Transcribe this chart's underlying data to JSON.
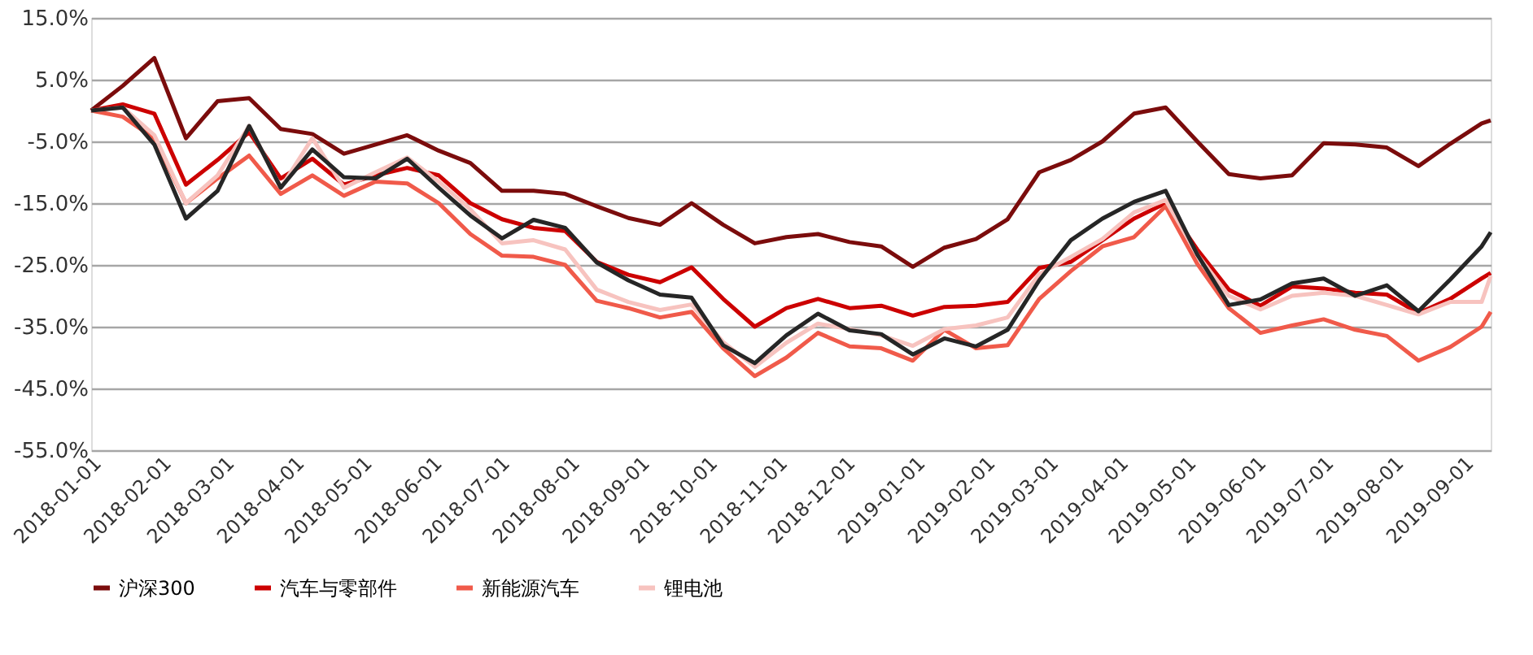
{
  "chart_data": {
    "type": "line",
    "x": [
      "2018-01-01",
      "2018-01-15",
      "2018-01-29",
      "2018-02-12",
      "2018-02-26",
      "2018-03-12",
      "2018-03-26",
      "2018-04-09",
      "2018-04-23",
      "2018-05-07",
      "2018-05-21",
      "2018-06-04",
      "2018-06-18",
      "2018-07-02",
      "2018-07-16",
      "2018-07-30",
      "2018-08-13",
      "2018-08-27",
      "2018-09-10",
      "2018-09-24",
      "2018-10-08",
      "2018-10-22",
      "2018-11-05",
      "2018-11-19",
      "2018-12-03",
      "2018-12-17",
      "2018-12-31",
      "2019-01-14",
      "2019-01-28",
      "2019-02-11",
      "2019-02-25",
      "2019-03-11",
      "2019-03-25",
      "2019-04-08",
      "2019-04-22",
      "2019-05-06",
      "2019-05-20",
      "2019-06-03",
      "2019-06-17",
      "2019-07-01",
      "2019-07-15",
      "2019-07-29",
      "2019-08-12",
      "2019-08-26",
      "2019-09-09",
      "2019-09-13"
    ],
    "series": [
      {
        "name": "沪深300",
        "color": "#7b0c0c",
        "values": [
          0,
          4,
          8.5,
          -4.5,
          1.5,
          2,
          -3,
          -3.8,
          -7,
          -5.5,
          -4,
          -6.5,
          -8.5,
          -13,
          -13,
          -13.5,
          -15.5,
          -17.4,
          -18.5,
          -15,
          -18.5,
          -21.5,
          -20.5,
          -20,
          -21.3,
          -22,
          -25.3,
          -22.2,
          -20.8,
          -17.6,
          -10,
          -8,
          -5,
          -0.5,
          0.5,
          -5,
          -10.3,
          -11,
          -10.5,
          -5.3,
          -5.5,
          -6,
          -9,
          -5.4,
          -2.1,
          -1.6
        ]
      },
      {
        "name": "汽车与零部件",
        "color": "#cc0000",
        "values": [
          0,
          1,
          -0.5,
          -12,
          -8,
          -3.5,
          -11,
          -7.8,
          -12,
          -10.5,
          -9.3,
          -10.5,
          -15,
          -17.6,
          -19,
          -19.5,
          -24.5,
          -26.6,
          -27.8,
          -25.4,
          -30.5,
          -35,
          -32,
          -30.5,
          -32,
          -31.6,
          -33.2,
          -31.8,
          -31.6,
          -31,
          -25.5,
          -24.5,
          -21,
          -17.5,
          -15,
          -22.5,
          -29,
          -31.6,
          -28.5,
          -28.8,
          -29.5,
          -29.8,
          -32.8,
          -30.5,
          -27.2,
          -26.3
        ]
      },
      {
        "name": "新能源汽车",
        "color": "#f05a4a",
        "values": [
          0,
          -1,
          -4.5,
          -15,
          -11,
          -7.3,
          -13.5,
          -10.5,
          -13.8,
          -11.5,
          -11.8,
          -15,
          -20,
          -23.5,
          -23.7,
          -25,
          -30.8,
          -32,
          -33.5,
          -32.6,
          -38.5,
          -43,
          -40,
          -36,
          -38.2,
          -38.5,
          -40.5,
          -35.5,
          -38.5,
          -38,
          -30.5,
          -26,
          -22,
          -20.5,
          -15.5,
          -24.8,
          -32,
          -36,
          -34.8,
          -33.8,
          -35.5,
          -36.5,
          -40.5,
          -38.3,
          -35,
          -32.6
        ]
      },
      {
        "name": "锂电池",
        "color": "#f7c3bf",
        "values": [
          0,
          0.5,
          -4,
          -15,
          -10.5,
          -2.5,
          -12.5,
          -4.5,
          -12.5,
          -10,
          -7.6,
          -11.5,
          -16,
          -21.5,
          -21,
          -22.5,
          -29,
          -31,
          -32.3,
          -31.4,
          -37.5,
          -41.5,
          -37.6,
          -34.5,
          -35.4,
          -36.4,
          -38.1,
          -35.4,
          -34.8,
          -33.5,
          -26.5,
          -23.7,
          -20.8,
          -16.5,
          -14.5,
          -23.3,
          -30,
          -32.2,
          -30,
          -29.5,
          -30,
          -31.5,
          -33,
          -31,
          -31,
          -26.8
        ]
      },
      {
        "color": "#262626",
        "values": [
          0,
          0.5,
          -5.5,
          -17.5,
          -13,
          -2.5,
          -12.5,
          -6.3,
          -10.8,
          -11,
          -7.8,
          -12.5,
          -17,
          -20.7,
          -17.7,
          -19,
          -24.6,
          -27.5,
          -29.8,
          -30.3,
          -38,
          -40.9,
          -36.4,
          -32.9,
          -35.6,
          -36.2,
          -39.5,
          -36.9,
          -38.2,
          -35.5,
          -27.5,
          -21,
          -17.5,
          -14.8,
          -13,
          -23.3,
          -31.5,
          -30.6,
          -28,
          -27.2,
          -30,
          -28.3,
          -32.5,
          -27.4,
          -22,
          -19.7
        ]
      }
    ],
    "xlim": [
      "2018-01-01",
      "2019-09-13"
    ],
    "xticks": [
      "2018-01-01",
      "2018-02-01",
      "2018-03-01",
      "2018-04-01",
      "2018-05-01",
      "2018-06-01",
      "2018-07-01",
      "2018-08-01",
      "2018-09-01",
      "2018-10-01",
      "2018-11-01",
      "2018-12-01",
      "2019-01-01",
      "2019-02-01",
      "2019-03-01",
      "2019-04-01",
      "2019-05-01",
      "2019-06-01",
      "2019-07-01",
      "2019-08-01",
      "2019-09-01"
    ],
    "ylim": [
      -55,
      15
    ],
    "yticks": [
      {
        "value": 15,
        "label": "15.0%"
      },
      {
        "value": 5,
        "label": "5.0%"
      },
      {
        "value": -5,
        "label": "-5.0%"
      },
      {
        "value": -15,
        "label": "-15.0%"
      },
      {
        "value": -25,
        "label": "-25.0%"
      },
      {
        "value": -35,
        "label": "-35.0%"
      },
      {
        "value": -45,
        "label": "-45.0%"
      },
      {
        "value": -55,
        "label": "-55.0%"
      }
    ],
    "grid": "y",
    "legend": "bottom",
    "line_style": "solid",
    "marker": "none"
  }
}
